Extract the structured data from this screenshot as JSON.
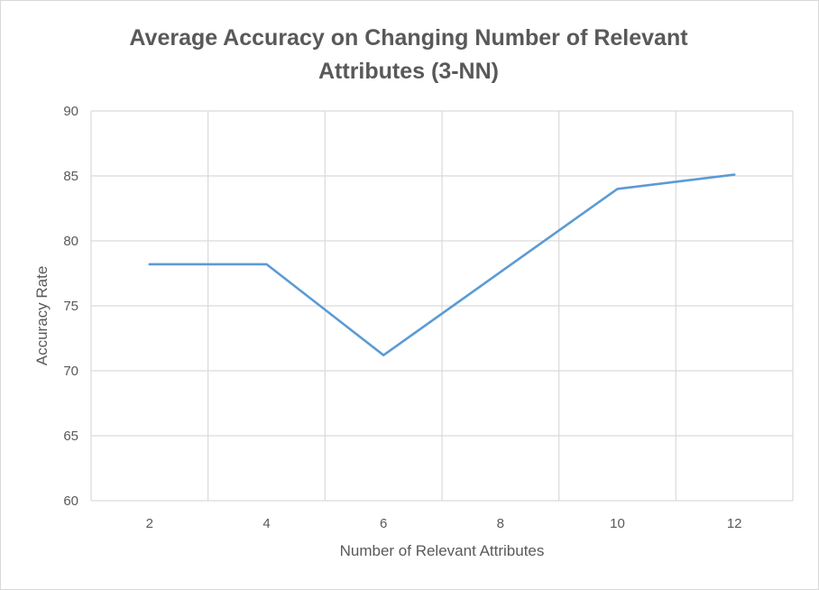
{
  "chart_data": {
    "type": "line",
    "title_lines": [
      "Average Accuracy on Changing Number of Relevant",
      "Attributes (3-NN)"
    ],
    "xlabel": "Number of Relevant Attributes",
    "ylabel": "Accuracy Rate",
    "categories": [
      "2",
      "4",
      "6",
      "8",
      "10",
      "12"
    ],
    "ylim": [
      60,
      90
    ],
    "yticks": [
      60,
      65,
      70,
      75,
      80,
      85,
      90
    ],
    "grid": true,
    "series": [
      {
        "values": [
          78.2,
          78.2,
          71.2,
          77.6,
          84.0,
          85.1
        ],
        "color": "#5b9bd5"
      }
    ]
  }
}
